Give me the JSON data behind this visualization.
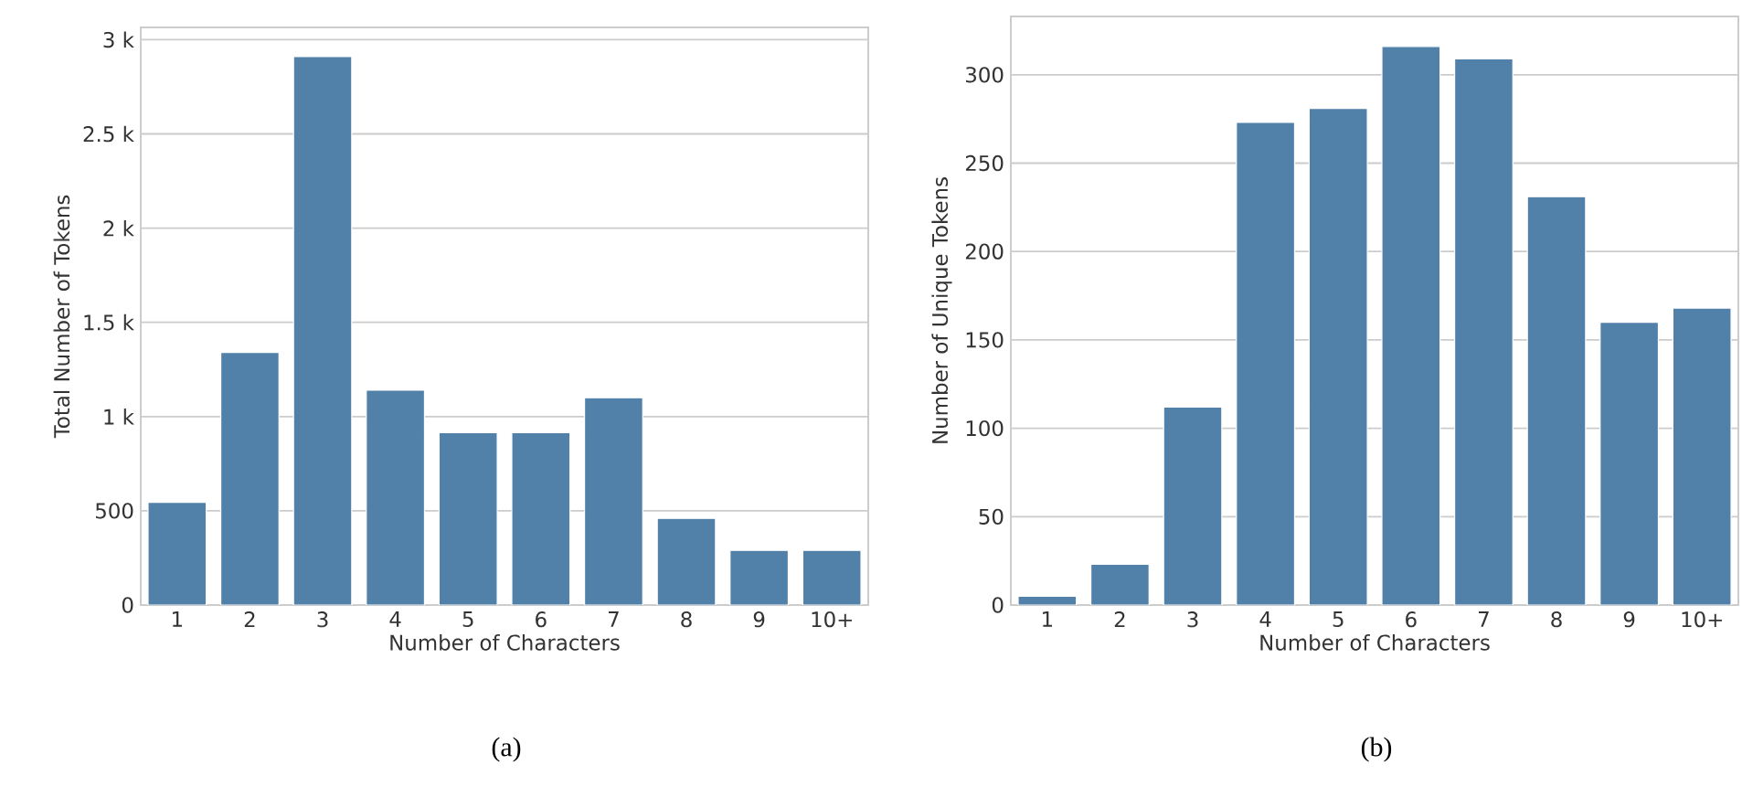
{
  "chart_data": [
    {
      "type": "bar",
      "categories": [
        "1",
        "2",
        "3",
        "4",
        "5",
        "6",
        "7",
        "8",
        "9",
        "10+"
      ],
      "values": [
        545,
        1340,
        2910,
        1140,
        915,
        915,
        1100,
        460,
        290,
        290
      ],
      "color": "#5181a8",
      "xlabel": "Number of Characters",
      "ylabel": "Total Number of Tokens",
      "ylim": [
        0,
        3065
      ],
      "yticks": [
        0,
        500,
        {
          "value": 1000,
          "label": "1 k"
        },
        {
          "value": 1500,
          "label": "1.5 k"
        },
        {
          "value": 2000,
          "label": "2 k"
        },
        {
          "value": 2500,
          "label": "2.5 k"
        },
        {
          "value": 3000,
          "label": "3 k"
        }
      ],
      "grid": "y",
      "annotations": [
        "(a)"
      ]
    },
    {
      "type": "bar",
      "categories": [
        "1",
        "2",
        "3",
        "4",
        "5",
        "6",
        "7",
        "8",
        "9",
        "10+"
      ],
      "values": [
        5,
        23,
        112,
        273,
        281,
        316,
        309,
        231,
        160,
        168
      ],
      "color": "#5181a8",
      "xlabel": "Number of Characters",
      "ylabel": "Number of Unique Tokens",
      "ylim": [
        0,
        333
      ],
      "yticks": [
        0,
        50,
        100,
        150,
        200,
        250,
        300
      ],
      "grid": "y",
      "annotations": [
        "(b)"
      ]
    }
  ]
}
